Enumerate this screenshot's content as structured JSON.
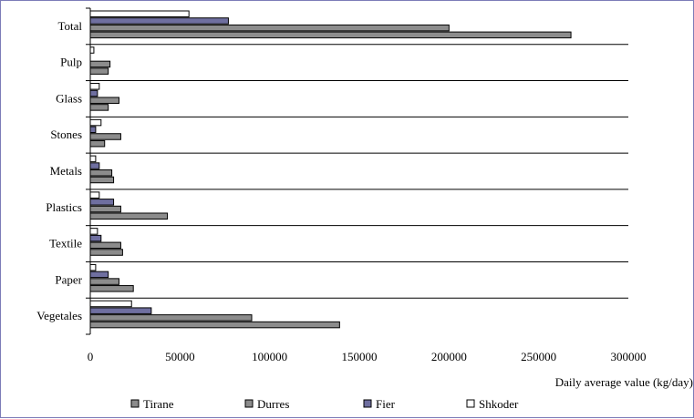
{
  "chart_data": {
    "type": "bar",
    "orientation": "horizontal",
    "categories": [
      "Vegetales",
      "Paper",
      "Textile",
      "Plastics",
      "Metals",
      "Stones",
      "Glass",
      "Pulp",
      "Total"
    ],
    "series": [
      {
        "name": "Tirane",
        "values": [
          139000,
          24000,
          18000,
          43000,
          13000,
          8000,
          10000,
          10000,
          268000
        ]
      },
      {
        "name": "Durres",
        "values": [
          90000,
          16000,
          17000,
          17000,
          12000,
          17000,
          16000,
          11000,
          200000
        ]
      },
      {
        "name": "Fier",
        "values": [
          34000,
          10000,
          6000,
          13000,
          5000,
          3000,
          4000,
          0,
          77000
        ]
      },
      {
        "name": "Shkoder",
        "values": [
          23000,
          3000,
          4000,
          5000,
          3000,
          6000,
          5000,
          2000,
          55000
        ]
      }
    ],
    "xlim": [
      0,
      300000
    ],
    "x_ticks": [
      "0",
      "50000",
      "100000",
      "150000",
      "200000",
      "250000",
      "300000"
    ],
    "xlabel": "Daily average value (kg/day)",
    "grid": "horizontal separators between categories",
    "legend_position": "bottom"
  },
  "colors": {
    "Tirane": "#8c8c8c",
    "Durres": "#8c8c8c",
    "Fier": "#6f6fa0",
    "Shkoder": "#ffffff",
    "frame": "#7c7cb8"
  }
}
